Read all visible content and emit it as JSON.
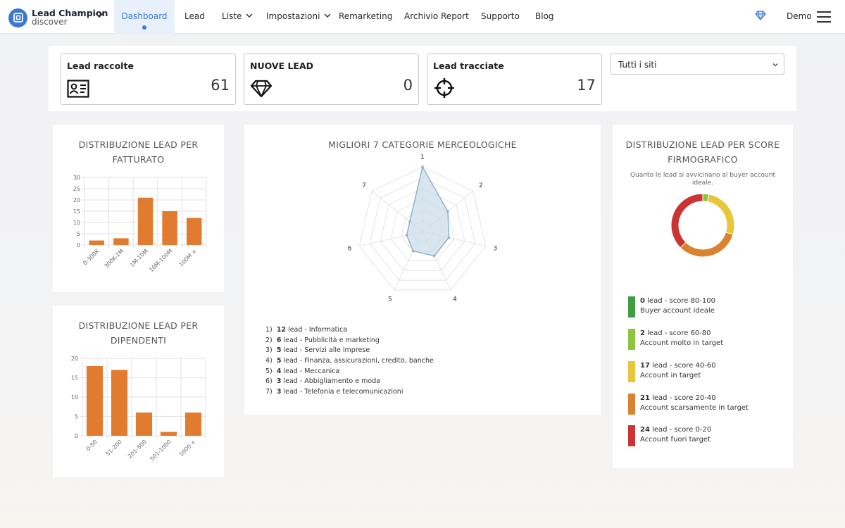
{
  "nav": {
    "brand_title": "Lead Champion",
    "brand_sub": "discover",
    "items": [
      {
        "label": "Dashboard"
      },
      {
        "label": "Lead"
      },
      {
        "label": "Liste"
      },
      {
        "label": "Impostazioni"
      },
      {
        "label": "Remarketing"
      },
      {
        "label": "Archivio Report"
      },
      {
        "label": "Supporto"
      },
      {
        "label": "Blog"
      }
    ],
    "user": "Demo"
  },
  "stats": [
    {
      "title": "Lead raccolte",
      "value": "61",
      "icon": "id-card-icon"
    },
    {
      "title": "NUOVE LEAD",
      "value": "0",
      "icon": "diamond-icon"
    },
    {
      "title": "Lead tracciate",
      "value": "17",
      "icon": "crosshair-icon"
    }
  ],
  "site_filter": {
    "selected": "Tutti i siti"
  },
  "colors": {
    "accent": "#3a78d6",
    "bar": "#e07b30",
    "radar_fill": "#c9dbe8",
    "radar_stroke": "#8fb3c9"
  },
  "chart_revenue": {
    "title_line1": "DISTRIBUZIONE LEAD PER",
    "title_line2": "FATTURATO"
  },
  "chart_employees": {
    "title_line1": "DISTRIBUZIONE LEAD PER",
    "title_line2": "DIPENDENTI"
  },
  "chart_categories": {
    "title": "MIGLIORI 7 CATEGORIE MERCEOLOGICHE",
    "list": [
      {
        "n": "1)",
        "count": "12",
        "text": " lead - Informatica"
      },
      {
        "n": "2)",
        "count": "6",
        "text": " lead - Pubblicità e marketing"
      },
      {
        "n": "3)",
        "count": "5",
        "text": " lead - Servizi alle imprese"
      },
      {
        "n": "4)",
        "count": "5",
        "text": " lead - Finanza, assicurazioni, credito, banche"
      },
      {
        "n": "5)",
        "count": "4",
        "text": " lead - Meccanica"
      },
      {
        "n": "6)",
        "count": "3",
        "text": " lead - Abbigliamento e moda"
      },
      {
        "n": "7)",
        "count": "3",
        "text": " lead - Telefonia e telecomunicazioni"
      }
    ]
  },
  "chart_score": {
    "title_line1": "DISTRIBUZIONE LEAD PER SCORE",
    "title_line2": "FIRMOGRAFICO",
    "subtitle_line1": "Quanto le lead si avvicinano al buyer account",
    "subtitle_line2": "ideale.",
    "legend": [
      {
        "count": "0",
        "range": " lead - score 80-100",
        "desc": "Buyer account ideale",
        "color": "#3f9e3f"
      },
      {
        "count": "2",
        "range": " lead - score 60-80",
        "desc": "Account molto in target",
        "color": "#8cc63f"
      },
      {
        "count": "17",
        "range": " lead - score 40-60",
        "desc": "Account in target",
        "color": "#e9c53c"
      },
      {
        "count": "21",
        "range": " lead - score 20-40",
        "desc": "Account scarsamente in target",
        "color": "#db8231"
      },
      {
        "count": "24",
        "range": " lead - score  0-20",
        "desc": "Account fuori target",
        "color": "#cc3333"
      }
    ]
  },
  "chart_data": [
    {
      "type": "bar",
      "categories": [
        "0-300K",
        "300K-1M",
        "1M-10M",
        "10M-100M",
        "100M +"
      ],
      "values": [
        2,
        3,
        21,
        15,
        12
      ],
      "ylim": [
        0,
        30
      ],
      "yticks": [
        "0",
        "5",
        "10",
        "15",
        "20",
        "25",
        "30"
      ],
      "title": "DISTRIBUZIONE LEAD PER FATTURATO",
      "grid": true
    },
    {
      "type": "bar",
      "categories": [
        "0-50",
        "51-200",
        "201-500",
        "501-1000",
        "1000 +"
      ],
      "values": [
        18,
        17,
        6,
        1,
        6
      ],
      "ylim": [
        0,
        20
      ],
      "yticks": [
        "0",
        "5",
        "10",
        "15",
        "20"
      ],
      "title": "DISTRIBUZIONE LEAD PER DIPENDENTI",
      "grid": true
    },
    {
      "type": "radar",
      "categories": [
        "1",
        "2",
        "3",
        "4",
        "5",
        "6",
        "7"
      ],
      "values": [
        12,
        6,
        5,
        5,
        4,
        3,
        3
      ],
      "rmax": 12,
      "title": "MIGLIORI 7 CATEGORIE MERCEOLOGICHE"
    },
    {
      "type": "pie",
      "labels": [
        "score 80-100",
        "score 60-80",
        "score 40-60",
        "score 20-40",
        "score 0-20"
      ],
      "values": [
        0,
        2,
        17,
        21,
        24
      ],
      "title": "DISTRIBUZIONE LEAD PER SCORE FIRMOGRAFICO"
    }
  ]
}
